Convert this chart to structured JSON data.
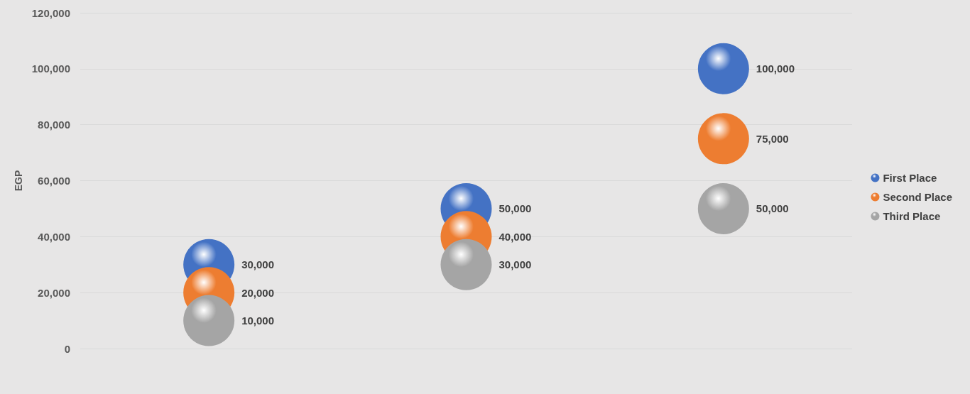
{
  "chart_data": {
    "type": "bubble",
    "ylabel": "EGP",
    "categories": [
      null,
      null,
      null
    ],
    "series": [
      {
        "name": "First Place",
        "color": "#4472c4",
        "values": [
          30000,
          50000,
          100000
        ],
        "sizes": [
          1,
          1,
          1
        ],
        "value_labels": [
          "30,000",
          "50,000",
          "100,000"
        ]
      },
      {
        "name": "Second Place",
        "color": "#ed7d31",
        "values": [
          20000,
          40000,
          75000
        ],
        "sizes": [
          1,
          1,
          1
        ],
        "value_labels": [
          "20,000",
          "40,000",
          "75,000"
        ]
      },
      {
        "name": "Third Place",
        "color": "#a5a5a5",
        "values": [
          10000,
          30000,
          50000
        ],
        "sizes": [
          1,
          1,
          1
        ],
        "value_labels": [
          "10,000",
          "30,000",
          "50,000"
        ]
      }
    ],
    "ylim": [
      0,
      120000
    ],
    "yticks": [
      0,
      {
        "value": 20000,
        "label": "20,000"
      },
      {
        "value": 40000,
        "label": "40,000"
      },
      {
        "value": 60000,
        "label": "60,000"
      },
      {
        "value": 80000,
        "label": "80,000"
      },
      {
        "value": 100000,
        "label": "100,000"
      },
      {
        "value": 120000,
        "label": "120,000"
      }
    ],
    "grid": "y",
    "legend": "right"
  }
}
